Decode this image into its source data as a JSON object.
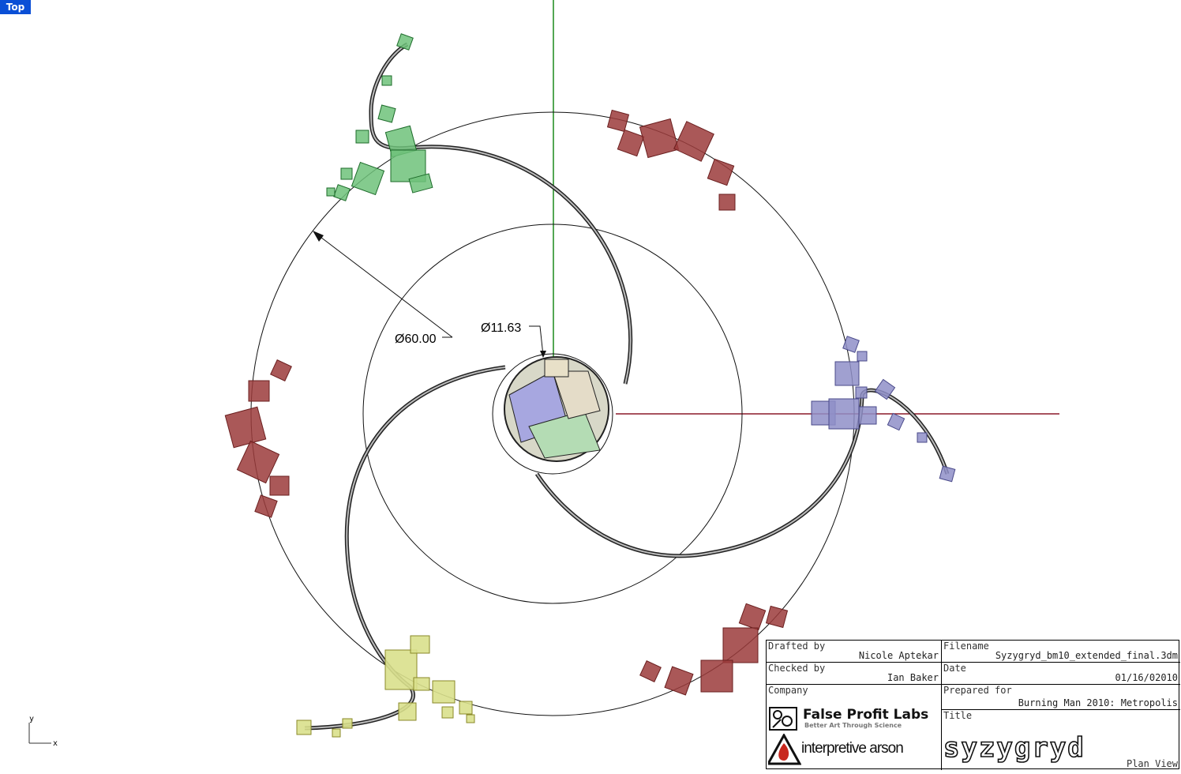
{
  "viewport": {
    "label": "Top",
    "axis_x": "x",
    "axis_y": "y",
    "dimension_outer": "Ø60.00",
    "dimension_inner": "Ø11.63"
  },
  "colors": {
    "viewport_label_bg": "#0a4fd6",
    "y_axis": "#1a8a1a",
    "x_axis": "#8b1a2a",
    "red_boxes": "#9b3b3b",
    "green_boxes": "#6fc27a",
    "purple_boxes": "#8f8fc8",
    "yellow_boxes": "#d9e08c"
  },
  "title_block": {
    "drafted_by_label": "Drafted by",
    "drafted_by": "Nicole Aptekar",
    "checked_by_label": "Checked by",
    "checked_by": "Ian Baker",
    "filename_label": "Filename",
    "filename": "Syzygryd_bm10_extended_final.3dm",
    "date_label": "Date",
    "date": "01/16/02010",
    "company_label": "Company",
    "prepared_for_label": "Prepared for",
    "prepared_for": "Burning Man 2010: Metropolis",
    "title_label": "Title",
    "logo1_name": "False Profit Labs",
    "logo1_tagline": "Better Art Through Science",
    "logo2_name": "interpretive arson",
    "brand_title": "syzygryd",
    "view_name": "Plan View"
  }
}
